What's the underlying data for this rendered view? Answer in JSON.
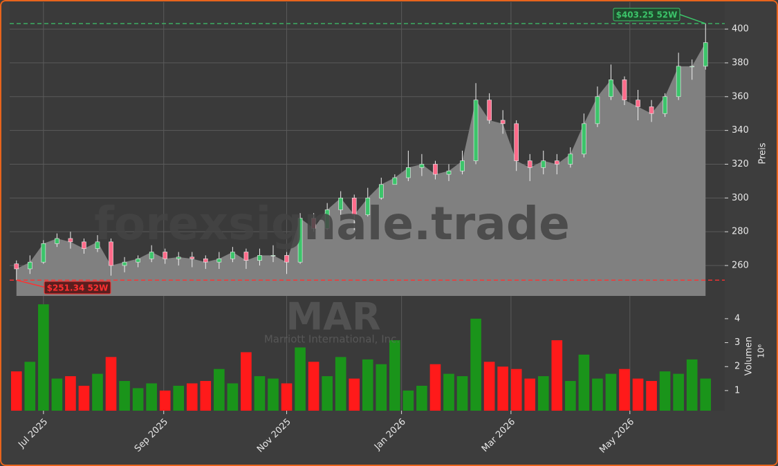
{
  "chart_data": {
    "type": "candlestick",
    "watermark": "forexsignale.trade",
    "symbol": "MAR",
    "company": "Marriott International, Inc.",
    "ylabel": "Preis",
    "categories": [
      null,
      null,
      null,
      null,
      null,
      null,
      null,
      null,
      null,
      null,
      null,
      null,
      null,
      null,
      null,
      null,
      null,
      null,
      null,
      null,
      null,
      null,
      null,
      null,
      null,
      null,
      null,
      null,
      null,
      null,
      null,
      null,
      null,
      null,
      null,
      null,
      null,
      null,
      null,
      null,
      null,
      null,
      null,
      null,
      null,
      null,
      null,
      null,
      null,
      null,
      null,
      null
    ],
    "xticks": [
      {
        "value": 2.0,
        "label": "Jul 2025"
      },
      {
        "value": 10.9,
        "label": "Sep 2025"
      },
      {
        "value": 20.0,
        "label": "Nov 2025"
      },
      {
        "value": 28.5,
        "label": "Jan 2026"
      },
      {
        "value": 36.6,
        "label": "Mar 2026"
      },
      {
        "value": 45.4,
        "label": "May 2026"
      }
    ],
    "open": [
      261,
      258,
      262,
      273,
      276,
      274,
      270,
      274,
      260,
      262,
      264,
      268,
      264,
      265,
      264,
      262,
      264,
      268,
      263,
      266,
      266,
      262,
      288,
      282,
      293,
      300,
      290,
      300,
      308,
      312,
      318,
      320,
      314,
      316,
      322,
      358,
      346,
      344,
      322,
      318,
      322,
      320,
      326,
      344,
      360,
      370,
      358,
      354,
      350,
      360,
      378,
      378
    ],
    "high": [
      263,
      266,
      275,
      279,
      280,
      276,
      278,
      276,
      265,
      266,
      272,
      270,
      268,
      268,
      266,
      268,
      271,
      270,
      270,
      272,
      268,
      291,
      291,
      297,
      304,
      302,
      306,
      312,
      314,
      328,
      326,
      322,
      320,
      328,
      368,
      362,
      352,
      346,
      326,
      328,
      326,
      330,
      350,
      366,
      379,
      372,
      364,
      358,
      362,
      386,
      382,
      403.25
    ],
    "low": [
      251.34,
      255,
      261,
      271,
      270,
      267,
      268,
      254,
      256,
      259,
      262,
      261,
      260,
      259,
      258,
      258,
      262,
      258,
      260,
      262,
      255,
      261,
      280,
      281,
      290,
      281,
      289,
      299,
      308,
      310,
      313,
      311,
      310,
      314,
      320,
      344,
      338,
      316,
      310,
      314,
      314,
      318,
      324,
      342,
      358,
      355,
      346,
      345,
      348,
      358,
      370,
      376
    ],
    "close": [
      258,
      262,
      273,
      276,
      274,
      270,
      274,
      260,
      262,
      264,
      268,
      264,
      265,
      264,
      262,
      264,
      268,
      263,
      266,
      266,
      262,
      288,
      282,
      293,
      300,
      290,
      300,
      308,
      312,
      318,
      320,
      314,
      316,
      322,
      358,
      346,
      344,
      322,
      318,
      322,
      320,
      326,
      344,
      360,
      370,
      358,
      354,
      350,
      360,
      378,
      378,
      392
    ],
    "up_color": "#3cc46a",
    "down_color": "#ff6b8a",
    "area_color": "#808080",
    "ylim": [
      242,
      416
    ],
    "yticks": [
      260,
      280,
      300,
      320,
      340,
      360,
      380,
      400
    ],
    "grid": true,
    "high_line": {
      "value": 403.25,
      "label": "$403.25 52W",
      "color": "#3cc46a"
    },
    "low_line": {
      "value": 251.34,
      "label": "$251.34 52W",
      "color": "#ff3030"
    },
    "volume": {
      "ylabel": "Volumen",
      "unit": "10⁶",
      "values": [
        1.8,
        2.2,
        4.6,
        1.5,
        1.6,
        1.2,
        1.7,
        2.4,
        1.4,
        1.1,
        1.3,
        1.0,
        1.2,
        1.3,
        1.4,
        1.9,
        1.3,
        2.6,
        1.6,
        1.5,
        1.3,
        2.8,
        2.2,
        1.6,
        2.4,
        1.5,
        2.3,
        2.1,
        3.1,
        1.0,
        1.2,
        2.1,
        1.7,
        1.6,
        4.0,
        2.2,
        2.0,
        1.9,
        1.5,
        1.6,
        3.1,
        1.4,
        2.5,
        1.5,
        1.7,
        1.9,
        1.5,
        1.4,
        1.8,
        1.7,
        2.3,
        1.5
      ],
      "up_color": "#1a941a",
      "down_color": "#ff1a1a",
      "ylim": [
        0.16,
        4.95
      ],
      "yticks": [
        1,
        2,
        3,
        4
      ]
    }
  }
}
